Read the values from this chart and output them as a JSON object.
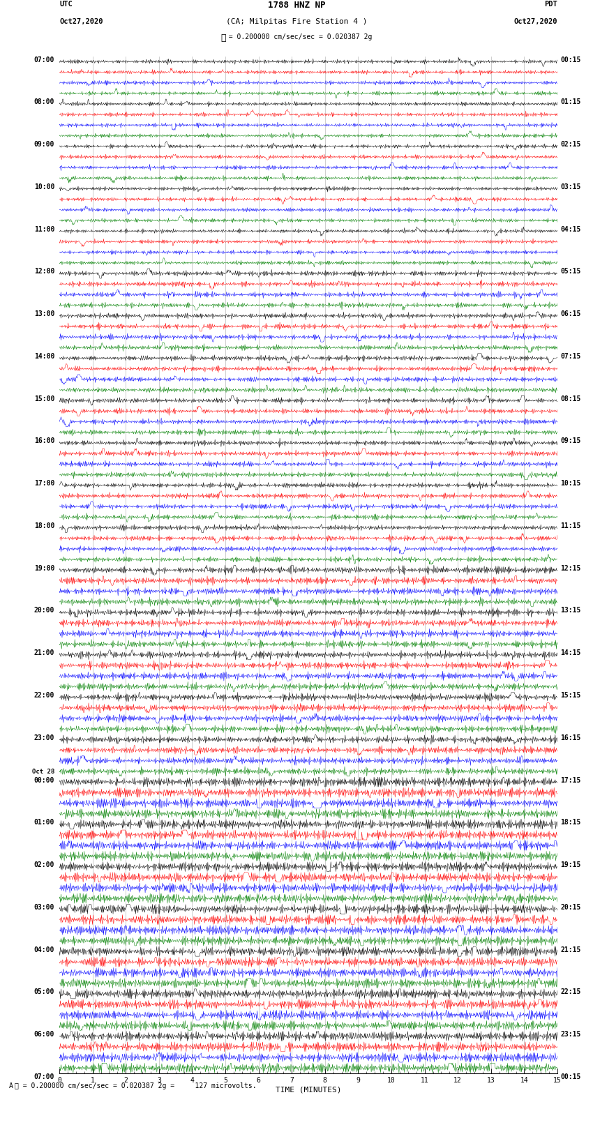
{
  "title_line1": "1788 HNZ NP",
  "title_line2": "(CA; Milpitas Fire Station 4 )",
  "scale_text": "= 0.200000 cm/sec/sec = 0.020387 2g",
  "footer_text": "= 0.200000 cm/sec/sec = 0.020387 2g =     127 microvolts.",
  "utc_label": "UTC",
  "utc_date": "Oct27,2020",
  "pdt_label": "PDT",
  "pdt_date": "Oct27,2020",
  "xlabel": "TIME (MINUTES)",
  "colors": [
    "black",
    "red",
    "blue",
    "green"
  ],
  "num_rows": 96,
  "background_color": "white",
  "fig_width": 8.5,
  "fig_height": 16.13,
  "dpi": 100
}
